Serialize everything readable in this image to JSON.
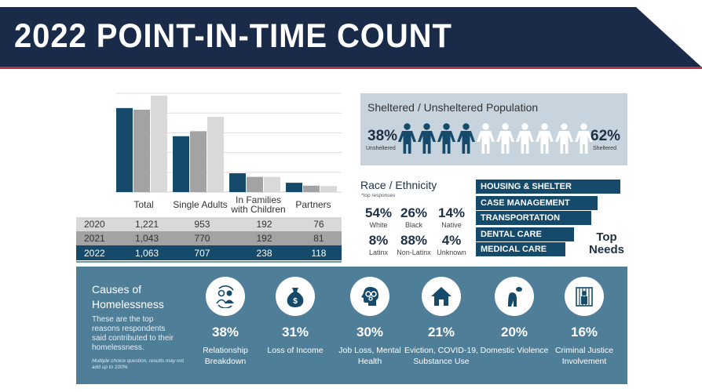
{
  "header": {
    "title": "2022 POINT-IN-TIME COUNT",
    "colors": {
      "navy": "#1a2b4a",
      "accent_red": "#b8314a"
    }
  },
  "chart_data": {
    "type": "bar",
    "categories": [
      "Total",
      "Single Adults",
      "In Families with Children",
      "Partners"
    ],
    "series": [
      {
        "name": "2022",
        "values": [
          1063,
          707,
          238,
          118
        ],
        "color": "#154a6a"
      },
      {
        "name": "2021",
        "values": [
          1043,
          770,
          192,
          81
        ],
        "color": "#a3a3a3"
      },
      {
        "name": "2020",
        "values": [
          1221,
          953,
          192,
          76
        ],
        "color": "#d9d9d9"
      }
    ],
    "ylim": [
      0,
      1250
    ],
    "grid": true,
    "ytick_step": 250
  },
  "table": {
    "rows": [
      {
        "year": "2020",
        "cells": [
          "1,221",
          "953",
          "192",
          "76"
        ]
      },
      {
        "year": "2021",
        "cells": [
          "1,043",
          "770",
          "192",
          "81"
        ]
      },
      {
        "year": "2022",
        "cells": [
          "1,063",
          "707",
          "238",
          "118"
        ]
      }
    ]
  },
  "sheltered": {
    "title": "Sheltered / Unsheltered Population",
    "unsheltered_pct": "38%",
    "unsheltered_label": "Unsheltered",
    "sheltered_pct": "62%",
    "sheltered_label": "Sheltered",
    "icons_filled": 4,
    "icons_total": 10
  },
  "race": {
    "title": "Race / Ethnicity",
    "note": "*top responses",
    "items": [
      {
        "pct": "54%",
        "label": "White"
      },
      {
        "pct": "26%",
        "label": "Black"
      },
      {
        "pct": "14%",
        "label": "Native"
      },
      {
        "pct": "8%",
        "label": "Latinx"
      },
      {
        "pct": "88%",
        "label": "Non-Latinx"
      },
      {
        "pct": "4%",
        "label": "Unknown"
      }
    ]
  },
  "needs": {
    "title_line1": "Top",
    "title_line2": "Needs",
    "items": [
      {
        "label": "HOUSING & SHELTER",
        "relative": 1.0
      },
      {
        "label": "CASE MANAGEMENT",
        "relative": 0.84
      },
      {
        "label": "TRANSPORTATION",
        "relative": 0.8
      },
      {
        "label": "DENTAL CARE",
        "relative": 0.68
      },
      {
        "label": "MEDICAL CARE",
        "relative": 0.62
      }
    ]
  },
  "causes": {
    "title_line1": "Causes of",
    "title_line2": "Homelessness",
    "description": "These are the top reasons respondents said contributed to their homelessness.",
    "footnote": "Multiple choice question, results may not add up to 100%",
    "items": [
      {
        "pct": "38%",
        "label": "Relationship Breakdown",
        "icon": "relationship-icon"
      },
      {
        "pct": "31%",
        "label": "Loss of Income",
        "icon": "money-bag-icon"
      },
      {
        "pct": "30%",
        "label": "Job Loss, Mental Health",
        "icon": "head-gears-icon"
      },
      {
        "pct": "21%",
        "label": "Eviction, COVID-19, Substance Use",
        "icon": "house-icon"
      },
      {
        "pct": "20%",
        "label": "Domestic Violence",
        "icon": "distressed-person-icon"
      },
      {
        "pct": "16%",
        "label": "Criminal Justice Involvement",
        "icon": "jail-icon"
      }
    ]
  }
}
